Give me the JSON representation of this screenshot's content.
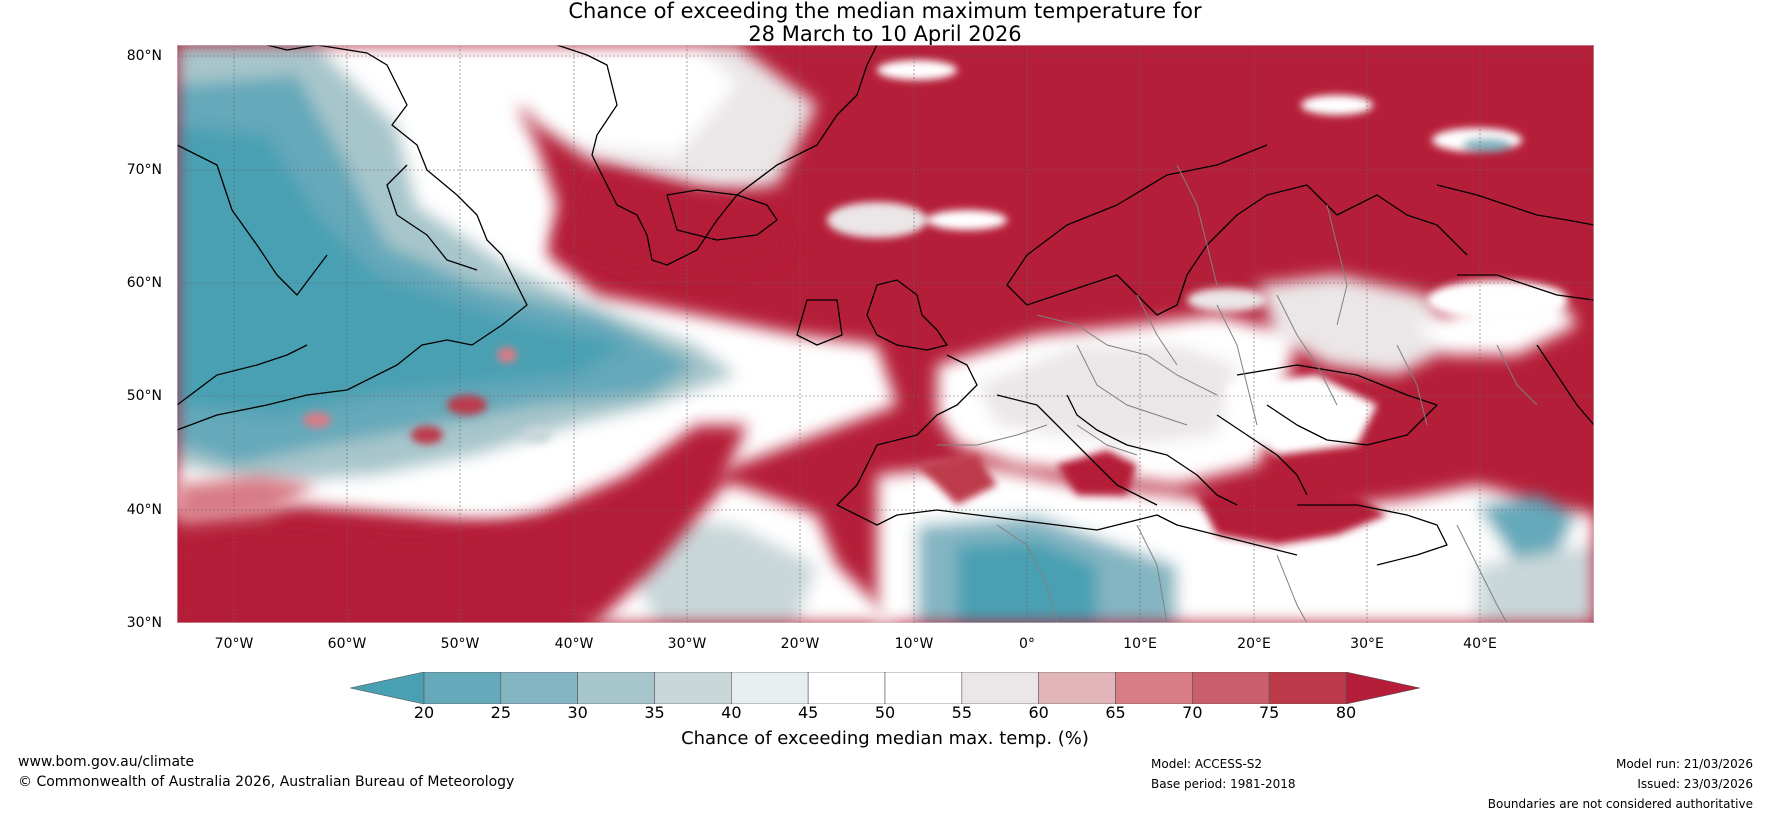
{
  "title": {
    "line1": "Chance of exceeding the median maximum temperature for",
    "line2": "28 March to 10 April 2026"
  },
  "axes": {
    "lat_labels": [
      "80°N",
      "70°N",
      "60°N",
      "50°N",
      "40°N",
      "30°N"
    ],
    "lon_labels": [
      "70°W",
      "60°W",
      "50°W",
      "40°W",
      "30°W",
      "20°W",
      "10°W",
      "0°",
      "10°E",
      "20°E",
      "30°E",
      "40°E"
    ],
    "lat_range": [
      30,
      81
    ],
    "lon_range": [
      -75,
      50
    ]
  },
  "colorbar": {
    "ticks": [
      "20",
      "25",
      "30",
      "35",
      "40",
      "45",
      "50",
      "55",
      "60",
      "65",
      "70",
      "75",
      "80"
    ],
    "colors": [
      "#48a0b2",
      "#65a9ba",
      "#84b5c2",
      "#a7c6cb",
      "#c9d7d9",
      "#e7eef0",
      "#ffffff",
      "#ffffff",
      "#ebe6e7",
      "#e1b5ba",
      "#d87c86",
      "#ca5f6c",
      "#bd3a4b",
      "#b51e38"
    ],
    "label": "Chance of exceeding median max. temp. (%)"
  },
  "footer": {
    "website": "www.bom.gov.au/climate",
    "copyright": "© Commonwealth of Australia 2026, Australian Bureau of Meteorology",
    "model": "Model: ACCESS-S2",
    "base_period": "Base period: 1981-2018",
    "model_run": "Model run: 21/03/2026",
    "issued": "Issued: 23/03/2026",
    "disclaimer": "Boundaries are not considered authoritative"
  },
  "colors": {
    "warm": "#b51e38",
    "cool": "#48a0b2",
    "neutral": "#ffffff"
  }
}
